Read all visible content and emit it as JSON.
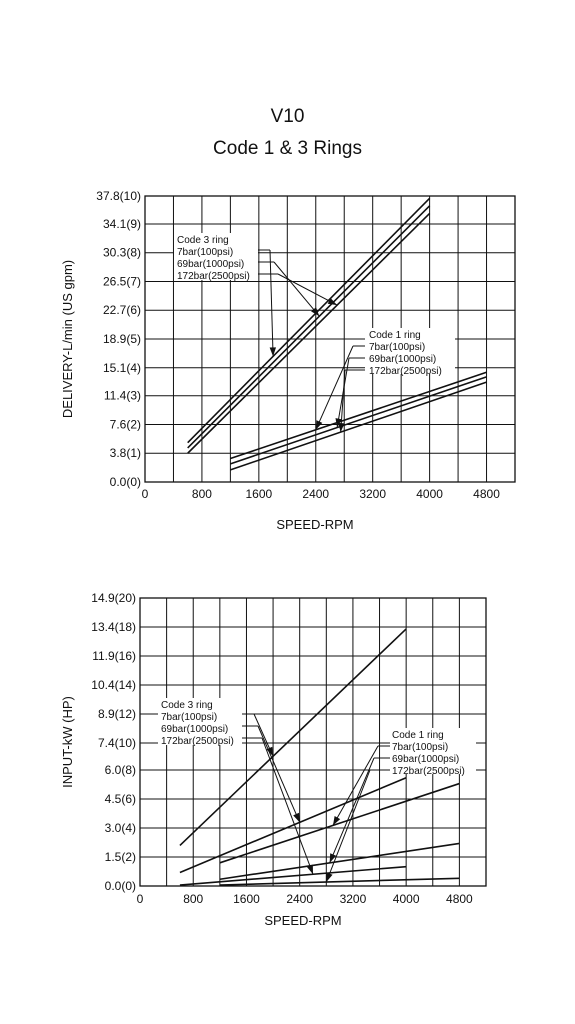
{
  "title": "V10",
  "subtitle": "Code 1 & 3 Rings",
  "chart_data": [
    {
      "type": "line",
      "xlabel": "SPEED-RPM",
      "ylabel": "DELIVERY-L/min (US gpm)",
      "xlim": [
        0,
        5200
      ],
      "ylim": [
        0,
        37.8
      ],
      "x_ticks": [
        0,
        800,
        1600,
        2400,
        3200,
        4000,
        4800
      ],
      "x_tick_labels": [
        "0",
        "800",
        "1600",
        "2400",
        "3200",
        "4000",
        "4800"
      ],
      "y_ticks": [
        0,
        3.8,
        7.6,
        11.4,
        15.1,
        18.9,
        22.7,
        26.5,
        30.3,
        34.1,
        37.8
      ],
      "y_tick_labels": [
        "0.0(0)",
        "3.8(1)",
        "7.6(2)",
        "11.4(3)",
        "15.1(4)",
        "18.9(5)",
        "22.7(6)",
        "26.5(7)",
        "30.3(8)",
        "34.1(9)",
        "37.8(10)"
      ],
      "grid": true,
      "annotations": [
        {
          "heading": "Code 3 ring",
          "lines": [
            "7bar(100psi)",
            "69bar(1000psi)",
            "172bar(2500psi)"
          ]
        },
        {
          "heading": "Code 1 ring",
          "lines": [
            "7bar(100psi)",
            "69bar(1000psi)",
            "172bar(2500psi)"
          ]
        }
      ],
      "series": [
        {
          "group": "code3",
          "x": [
            600,
            4000
          ],
          "y": [
            5.2,
            37.5
          ]
        },
        {
          "group": "code3",
          "x": [
            600,
            4000
          ],
          "y": [
            4.5,
            36.5
          ]
        },
        {
          "group": "code3",
          "x": [
            600,
            4000
          ],
          "y": [
            3.8,
            35.5
          ]
        },
        {
          "group": "code1",
          "x": [
            1200,
            4800
          ],
          "y": [
            3.1,
            14.5
          ]
        },
        {
          "group": "code1",
          "x": [
            1200,
            4800
          ],
          "y": [
            2.4,
            13.9
          ]
        },
        {
          "group": "code1",
          "x": [
            1200,
            4800
          ],
          "y": [
            1.6,
            13.2
          ]
        }
      ]
    },
    {
      "type": "line",
      "xlabel": "SPEED-RPM",
      "ylabel": "INPUT-kW (HP)",
      "xlim": [
        0,
        5200
      ],
      "ylim": [
        0,
        14.9
      ],
      "x_ticks": [
        0,
        800,
        1600,
        2400,
        3200,
        4000,
        4800
      ],
      "x_tick_labels": [
        "0",
        "800",
        "1600",
        "2400",
        "3200",
        "4000",
        "4800"
      ],
      "y_ticks": [
        0,
        1.5,
        3.0,
        4.5,
        6.0,
        7.4,
        8.9,
        10.4,
        11.9,
        13.4,
        14.9
      ],
      "y_tick_labels": [
        "0.0(0)",
        "1.5(2)",
        "3.0(4)",
        "4.5(6)",
        "6.0(8)",
        "7.4(10)",
        "8.9(12)",
        "10.4(14)",
        "11.9(16)",
        "13.4(18)",
        "14.9(20)"
      ],
      "grid": true,
      "annotations": [
        {
          "heading": "Code 3 ring",
          "lines": [
            "7bar(100psi)",
            "69bar(1000psi)",
            "172bar(2500psi)"
          ]
        },
        {
          "heading": "Code 1 ring",
          "lines": [
            "7bar(100psi)",
            "69bar(1000psi)",
            "172bar(2500psi)"
          ]
        }
      ],
      "series": [
        {
          "group": "code3",
          "x": [
            600,
            4000
          ],
          "y": [
            2.1,
            13.3
          ]
        },
        {
          "group": "code3",
          "x": [
            600,
            4000
          ],
          "y": [
            0.7,
            5.6
          ]
        },
        {
          "group": "code3",
          "x": [
            600,
            4000
          ],
          "y": [
            0.05,
            1.0
          ]
        },
        {
          "group": "code1",
          "x": [
            1200,
            4800
          ],
          "y": [
            1.2,
            5.3
          ]
        },
        {
          "group": "code1",
          "x": [
            1200,
            4800
          ],
          "y": [
            0.35,
            2.2
          ]
        },
        {
          "group": "code1",
          "x": [
            1200,
            4800
          ],
          "y": [
            0.05,
            0.4
          ]
        }
      ]
    }
  ]
}
